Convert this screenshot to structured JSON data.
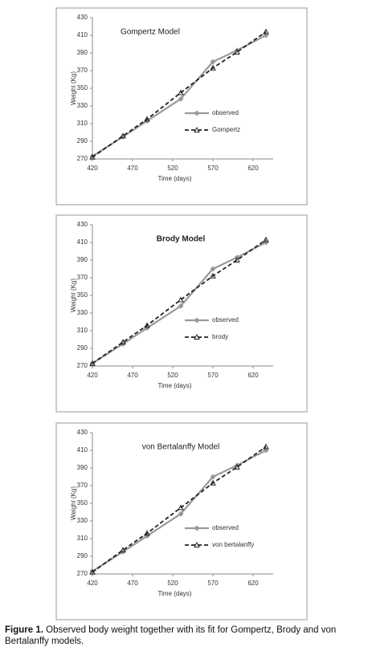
{
  "chart_data": [
    {
      "type": "line",
      "title": "Gompertz Model",
      "title_weight": "normal",
      "xlabel": "Time (days)",
      "ylabel": "Weight (Kg)",
      "x": [
        420,
        458,
        488,
        530,
        570,
        600,
        636
      ],
      "xlim": [
        420,
        645
      ],
      "xticks": [
        420,
        470,
        520,
        570,
        620
      ],
      "ylim": [
        270,
        430
      ],
      "yticks": [
        270,
        290,
        310,
        330,
        350,
        370,
        390,
        410,
        430
      ],
      "series": [
        {
          "name": "observed",
          "color": "#999999",
          "values": [
            273,
            295,
            313,
            338,
            380,
            393,
            410
          ]
        },
        {
          "name": "Gompertz",
          "color": "#222222",
          "values": [
            272,
            296,
            315,
            345,
            373,
            391,
            414
          ]
        }
      ]
    },
    {
      "type": "line",
      "title": "Brody Model",
      "title_weight": "bold",
      "xlabel": "Time (days)",
      "ylabel": "Weight (Kg)",
      "x": [
        420,
        458,
        488,
        530,
        570,
        600,
        636
      ],
      "xlim": [
        420,
        645
      ],
      "xticks": [
        420,
        470,
        520,
        570,
        620
      ],
      "ylim": [
        270,
        430
      ],
      "yticks": [
        270,
        290,
        310,
        330,
        350,
        370,
        390,
        410,
        430
      ],
      "series": [
        {
          "name": "observed",
          "color": "#999999",
          "values": [
            273,
            295,
            313,
            338,
            380,
            393,
            410
          ]
        },
        {
          "name": "brody",
          "color": "#222222",
          "values": [
            273,
            297,
            316,
            345,
            372,
            390,
            413
          ]
        }
      ]
    },
    {
      "type": "line",
      "title": "von Bertalanffy Model",
      "title_weight": "normal",
      "xlabel": "Time (days)",
      "ylabel": "Weight (Kg)",
      "x": [
        420,
        458,
        488,
        530,
        570,
        600,
        636
      ],
      "xlim": [
        420,
        645
      ],
      "xticks": [
        420,
        470,
        520,
        570,
        620
      ],
      "ylim": [
        270,
        430
      ],
      "yticks": [
        270,
        290,
        310,
        330,
        350,
        370,
        390,
        410,
        430
      ],
      "series": [
        {
          "name": "observed",
          "color": "#999999",
          "values": [
            273,
            295,
            313,
            338,
            380,
            393,
            410
          ]
        },
        {
          "name": "von bertalanffy",
          "color": "#222222",
          "values": [
            272,
            297,
            316,
            345,
            373,
            391,
            414
          ]
        }
      ]
    }
  ],
  "caption": {
    "label": "Figure 1.",
    "text": "Observed body weight together with its fit for Gompertz, Brody and von Bertalanffy models."
  }
}
